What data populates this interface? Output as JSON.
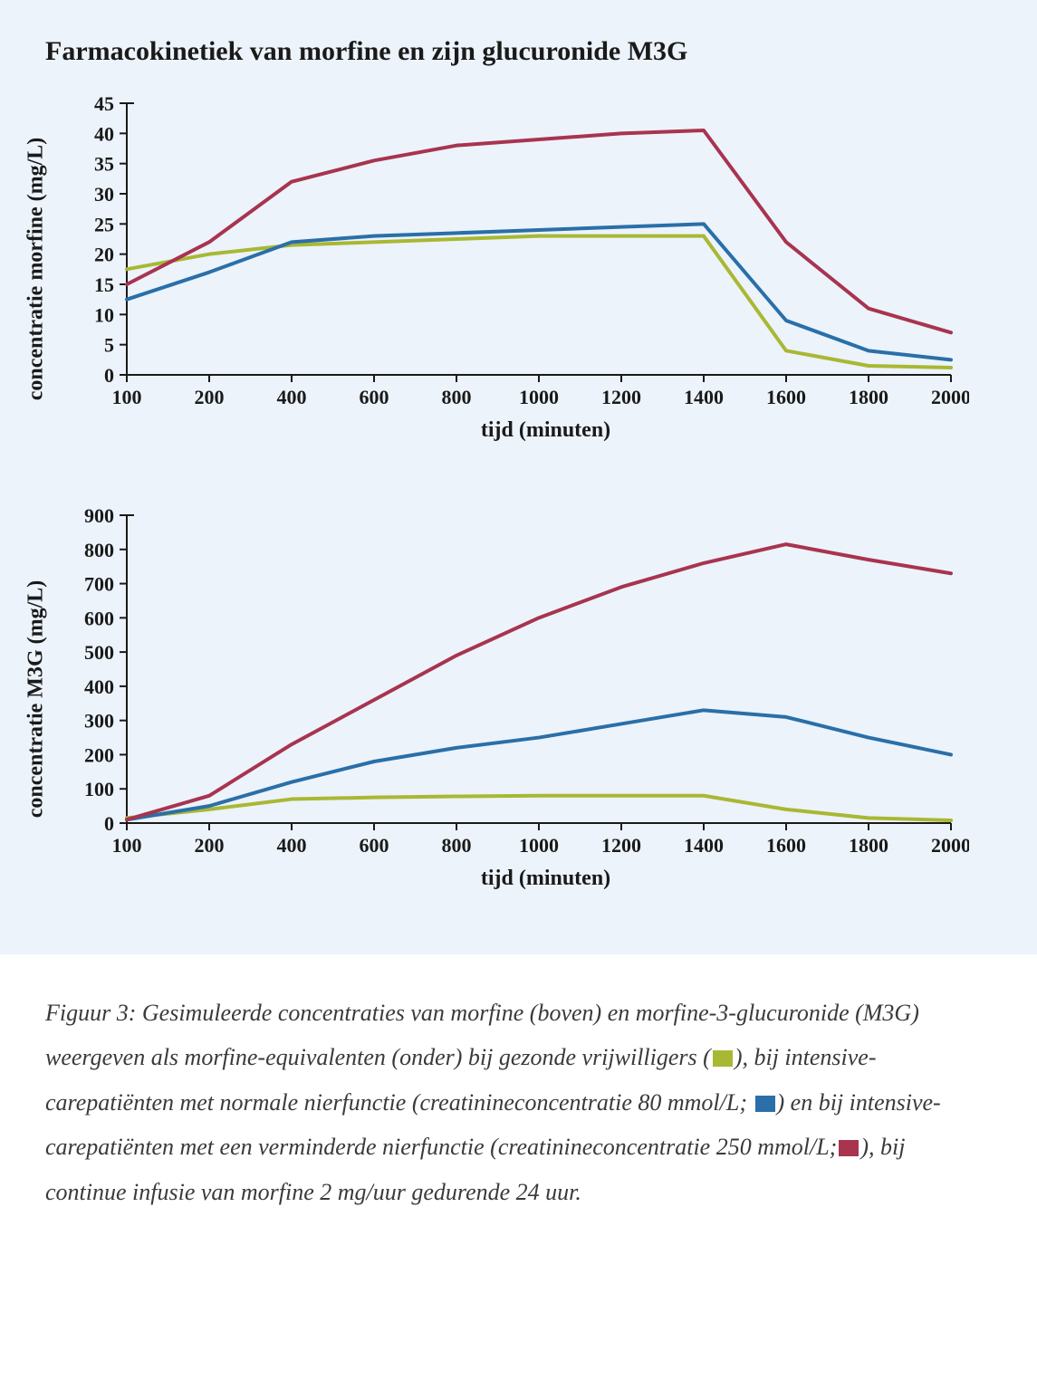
{
  "panel": {
    "title": "Farmacokinetiek van morfine en zijn glucuronide M3G",
    "background_color": "#ecf3fb"
  },
  "chart1": {
    "type": "line",
    "ylabel": "concentratie morfine (mg/L)",
    "xlabel": "tijd (minuten)",
    "xticks": [
      100,
      200,
      400,
      600,
      800,
      1000,
      1200,
      1400,
      1600,
      1800,
      2000
    ],
    "yticks": [
      0,
      5,
      10,
      15,
      20,
      25,
      30,
      35,
      40,
      45
    ],
    "ylim": [
      0,
      45
    ],
    "line_width": 4,
    "tick_len": 8,
    "axis_color": "#1a1a1a",
    "label_fontsize": 24,
    "tick_fontsize": 22,
    "series": [
      {
        "name": "healthy",
        "color": "#a8b833",
        "points": [
          [
            100,
            17.5
          ],
          [
            200,
            20
          ],
          [
            400,
            21.5
          ],
          [
            600,
            22
          ],
          [
            800,
            22.5
          ],
          [
            1000,
            23
          ],
          [
            1200,
            23
          ],
          [
            1400,
            23
          ],
          [
            1600,
            4
          ],
          [
            1800,
            1.5
          ],
          [
            2000,
            1.2
          ]
        ]
      },
      {
        "name": "icu-normal",
        "color": "#2a6fa8",
        "points": [
          [
            100,
            12.5
          ],
          [
            200,
            17
          ],
          [
            400,
            22
          ],
          [
            600,
            23
          ],
          [
            800,
            23.5
          ],
          [
            1000,
            24
          ],
          [
            1200,
            24.5
          ],
          [
            1400,
            25
          ],
          [
            1600,
            9
          ],
          [
            1800,
            4
          ],
          [
            2000,
            2.5
          ]
        ]
      },
      {
        "name": "icu-reduced",
        "color": "#a8344f",
        "points": [
          [
            100,
            15
          ],
          [
            200,
            22
          ],
          [
            400,
            32
          ],
          [
            600,
            35.5
          ],
          [
            800,
            38
          ],
          [
            1000,
            39
          ],
          [
            1200,
            40
          ],
          [
            1400,
            40.5
          ],
          [
            1600,
            22
          ],
          [
            1800,
            11
          ],
          [
            2000,
            7
          ]
        ]
      }
    ]
  },
  "chart2": {
    "type": "line",
    "ylabel": "concentratie M3G (mg/L)",
    "xlabel": "tijd (minuten)",
    "xticks": [
      100,
      200,
      400,
      600,
      800,
      1000,
      1200,
      1400,
      1600,
      1800,
      2000
    ],
    "yticks": [
      0,
      100,
      200,
      300,
      400,
      500,
      600,
      700,
      800,
      900
    ],
    "ylim": [
      0,
      900
    ],
    "line_width": 4,
    "tick_len": 8,
    "axis_color": "#1a1a1a",
    "label_fontsize": 24,
    "tick_fontsize": 22,
    "series": [
      {
        "name": "healthy",
        "color": "#a8b833",
        "points": [
          [
            100,
            15
          ],
          [
            200,
            40
          ],
          [
            400,
            70
          ],
          [
            600,
            75
          ],
          [
            800,
            78
          ],
          [
            1000,
            80
          ],
          [
            1200,
            80
          ],
          [
            1400,
            80
          ],
          [
            1600,
            40
          ],
          [
            1800,
            15
          ],
          [
            2000,
            8
          ]
        ]
      },
      {
        "name": "icu-normal",
        "color": "#2a6fa8",
        "points": [
          [
            100,
            10
          ],
          [
            200,
            50
          ],
          [
            400,
            120
          ],
          [
            600,
            180
          ],
          [
            800,
            220
          ],
          [
            1000,
            250
          ],
          [
            1200,
            290
          ],
          [
            1400,
            330
          ],
          [
            1600,
            310
          ],
          [
            1800,
            250
          ],
          [
            2000,
            200
          ]
        ]
      },
      {
        "name": "icu-reduced",
        "color": "#a8344f",
        "points": [
          [
            100,
            10
          ],
          [
            200,
            80
          ],
          [
            400,
            230
          ],
          [
            600,
            360
          ],
          [
            800,
            490
          ],
          [
            1000,
            600
          ],
          [
            1200,
            690
          ],
          [
            1400,
            760
          ],
          [
            1600,
            815
          ],
          [
            1800,
            770
          ],
          [
            2000,
            730
          ]
        ]
      }
    ]
  },
  "caption": {
    "prefix": "Figuur 3: Gesimuleerde concentraties van morfine (boven) en morfine-3-glucuronide (M3G) weergeven als morfine-equivalenten (onder) bij gezonde vrijwilligers (",
    "after_sw1": "), bij intensive-carepatiënten met normale nierfunctie (creatinineconcentratie 80 mmol/L; ",
    "after_sw2": ") en bij intensive-carepatiënten met een verminderde nierfunctie (creatinineconcentratie 250 mmol/L;",
    "after_sw3": "), bij continue infusie van morfine 2 mg/uur gedurende 24 uur.",
    "swatch_colors": {
      "healthy": "#a8b833",
      "icu_normal": "#2a6fa8",
      "icu_reduced": "#a8344f"
    }
  }
}
